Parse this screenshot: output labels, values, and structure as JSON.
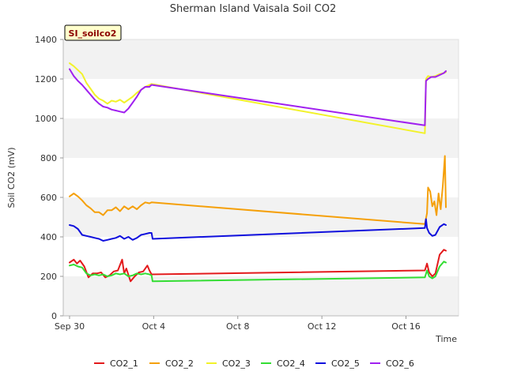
{
  "chart_data": {
    "type": "line",
    "title": "Sherman Island Vaisala Soil CO2",
    "site_tag": "SI_soilco2",
    "xlabel": "Time",
    "ylabel": "Soil CO2 (mV)",
    "xlim": [
      -0.3,
      18.5
    ],
    "ylim": [
      0,
      1400
    ],
    "y_ticks": [
      0,
      200,
      400,
      600,
      800,
      1000,
      1200,
      1400
    ],
    "x_ticks": [
      {
        "value": 0,
        "label": "Sep 30"
      },
      {
        "value": 4,
        "label": "Oct 4"
      },
      {
        "value": 8,
        "label": "Oct 8"
      },
      {
        "value": 12,
        "label": "Oct 12"
      },
      {
        "value": 16,
        "label": "Oct 16"
      }
    ],
    "x_units": "days since Sep 30",
    "band_colors": [
      "#f2f2f2",
      "#ffffff"
    ],
    "series": [
      {
        "name": "CO2_1",
        "color": "#e31a1c",
        "x": [
          0.0,
          0.2,
          0.35,
          0.5,
          0.7,
          0.9,
          1.1,
          1.3,
          1.5,
          1.7,
          1.9,
          2.1,
          2.3,
          2.5,
          2.6,
          2.7,
          2.9,
          3.1,
          3.3,
          3.5,
          3.7,
          3.8,
          3.9,
          16.9,
          17.0,
          17.1,
          17.25,
          17.4,
          17.6,
          17.8,
          17.9
        ],
        "y": [
          270,
          285,
          265,
          280,
          250,
          195,
          215,
          215,
          220,
          195,
          205,
          225,
          230,
          285,
          215,
          240,
          175,
          200,
          220,
          225,
          255,
          230,
          210,
          230,
          265,
          220,
          200,
          215,
          310,
          335,
          330
        ]
      },
      {
        "name": "CO2_2",
        "color": "#f5a00a",
        "x": [
          0.0,
          0.2,
          0.4,
          0.6,
          0.8,
          1.0,
          1.2,
          1.4,
          1.6,
          1.8,
          2.0,
          2.2,
          2.4,
          2.6,
          2.8,
          3.0,
          3.2,
          3.4,
          3.6,
          3.8,
          3.9,
          16.9,
          17.0,
          17.05,
          17.15,
          17.25,
          17.35,
          17.45,
          17.55,
          17.65,
          17.75,
          17.85,
          17.9
        ],
        "y": [
          605,
          620,
          605,
          585,
          560,
          545,
          525,
          525,
          510,
          535,
          535,
          550,
          530,
          555,
          540,
          555,
          540,
          560,
          575,
          570,
          575,
          465,
          520,
          650,
          630,
          555,
          580,
          510,
          620,
          540,
          660,
          810,
          550
        ]
      },
      {
        "name": "CO2_3",
        "color": "#f2f22a",
        "x": [
          0.0,
          0.2,
          0.4,
          0.6,
          0.8,
          1.0,
          1.2,
          1.4,
          1.6,
          1.8,
          2.0,
          2.2,
          2.4,
          2.6,
          2.8,
          3.0,
          3.2,
          3.4,
          3.6,
          3.8,
          3.9,
          16.9,
          16.95,
          17.05,
          17.2,
          17.4,
          17.6,
          17.8,
          17.9
        ],
        "y": [
          1280,
          1265,
          1245,
          1225,
          1180,
          1150,
          1120,
          1100,
          1090,
          1075,
          1090,
          1085,
          1095,
          1080,
          1095,
          1110,
          1130,
          1145,
          1160,
          1170,
          1175,
          925,
          1200,
          1215,
          1210,
          1215,
          1225,
          1230,
          1235
        ]
      },
      {
        "name": "CO2_4",
        "color": "#33dd33",
        "x": [
          0.0,
          0.2,
          0.4,
          0.6,
          0.8,
          1.0,
          1.2,
          1.4,
          1.6,
          1.8,
          2.0,
          2.2,
          2.4,
          2.6,
          2.8,
          3.0,
          3.2,
          3.4,
          3.6,
          3.8,
          3.9,
          3.95,
          16.9,
          17.0,
          17.1,
          17.25,
          17.4,
          17.6,
          17.8,
          17.9
        ],
        "y": [
          255,
          260,
          250,
          245,
          215,
          205,
          210,
          205,
          210,
          200,
          205,
          215,
          210,
          215,
          200,
          205,
          215,
          210,
          215,
          210,
          205,
          175,
          195,
          230,
          200,
          190,
          200,
          250,
          275,
          270
        ]
      },
      {
        "name": "CO2_5",
        "color": "#1010dd",
        "x": [
          0.0,
          0.2,
          0.4,
          0.6,
          0.8,
          1.0,
          1.2,
          1.4,
          1.6,
          1.8,
          2.0,
          2.2,
          2.4,
          2.6,
          2.8,
          3.0,
          3.2,
          3.4,
          3.6,
          3.8,
          3.9,
          3.95,
          16.9,
          16.95,
          17.0,
          17.1,
          17.25,
          17.4,
          17.6,
          17.8,
          17.9
        ],
        "y": [
          460,
          455,
          440,
          410,
          405,
          400,
          395,
          390,
          380,
          385,
          390,
          395,
          405,
          390,
          400,
          385,
          395,
          410,
          415,
          420,
          420,
          390,
          445,
          490,
          445,
          420,
          405,
          410,
          450,
          465,
          460
        ]
      },
      {
        "name": "CO2_6",
        "color": "#a020f0",
        "x": [
          0.0,
          0.2,
          0.4,
          0.6,
          0.8,
          1.0,
          1.2,
          1.4,
          1.6,
          1.8,
          2.0,
          2.2,
          2.4,
          2.6,
          2.8,
          3.0,
          3.2,
          3.4,
          3.6,
          3.8,
          3.9,
          16.9,
          16.95,
          17.05,
          17.2,
          17.4,
          17.6,
          17.8,
          17.9
        ],
        "y": [
          1250,
          1215,
          1190,
          1170,
          1145,
          1120,
          1095,
          1075,
          1060,
          1055,
          1045,
          1040,
          1035,
          1030,
          1050,
          1080,
          1110,
          1145,
          1160,
          1160,
          1170,
          965,
          1190,
          1200,
          1210,
          1210,
          1220,
          1230,
          1240
        ]
      }
    ]
  }
}
